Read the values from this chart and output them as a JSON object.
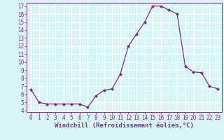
{
  "x": [
    0,
    1,
    2,
    3,
    4,
    5,
    6,
    7,
    8,
    9,
    10,
    11,
    12,
    13,
    14,
    15,
    16,
    17,
    18,
    19,
    20,
    21,
    22,
    23
  ],
  "y": [
    6.6,
    5.0,
    4.8,
    4.8,
    4.8,
    4.8,
    4.8,
    4.4,
    5.8,
    6.5,
    6.7,
    8.5,
    12.0,
    13.5,
    15.0,
    17.0,
    17.0,
    16.5,
    16.0,
    9.5,
    8.8,
    8.7,
    7.0,
    6.7
  ],
  "line_color": "#7b2d8b",
  "marker": "D",
  "marker_size": 2,
  "background_color": "#d8f5f5",
  "grid_color": "#ffffff",
  "xlabel": "Windchill (Refroidissement éolien,°C)",
  "ylim": [
    3.8,
    17.4
  ],
  "xlim": [
    -0.5,
    23.5
  ],
  "yticks": [
    4,
    5,
    6,
    7,
    8,
    9,
    10,
    11,
    12,
    13,
    14,
    15,
    16,
    17
  ],
  "xticks": [
    0,
    1,
    2,
    3,
    4,
    5,
    6,
    7,
    8,
    9,
    10,
    11,
    12,
    13,
    14,
    15,
    16,
    17,
    18,
    19,
    20,
    21,
    22,
    23
  ],
  "tick_fontsize": 5.5,
  "label_fontsize": 6.5
}
